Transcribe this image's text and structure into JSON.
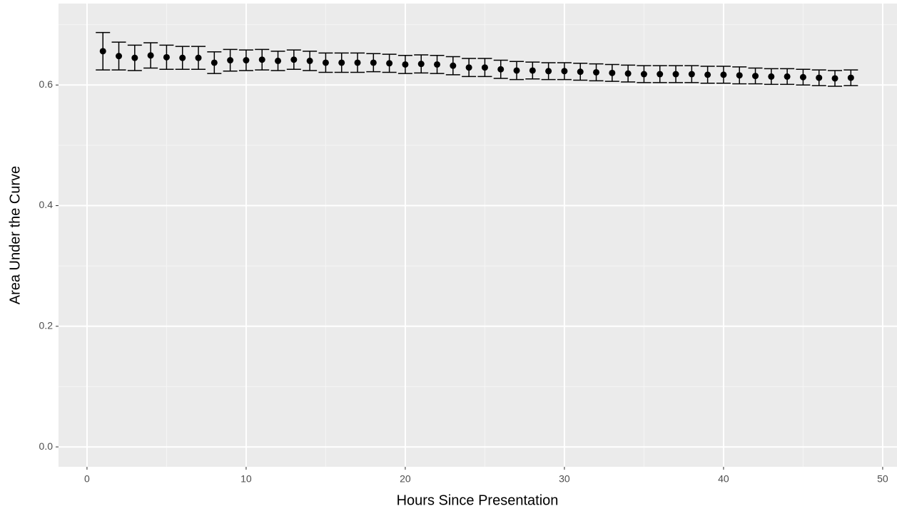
{
  "chart_data": {
    "type": "errorbar",
    "x_label": "Hours Since Presentation",
    "y_label": "Area Under the Curve",
    "grid": true,
    "xlim": [
      -1.79,
      50.9
    ],
    "ylim": [
      -0.033,
      0.735
    ],
    "xticks": [
      0,
      10,
      20,
      30,
      40,
      50
    ],
    "yticks": [
      {
        "value": 0,
        "label": "0.0"
      },
      {
        "value": 0.2,
        "label": "0.2"
      },
      {
        "value": 0.4,
        "label": "0.4"
      },
      {
        "value": 0.6,
        "label": "0.6"
      }
    ],
    "series": [
      {
        "color": "#000000",
        "x": [
          1,
          2,
          3,
          4,
          5,
          6,
          7,
          8,
          9,
          10,
          11,
          12,
          13,
          14,
          15,
          16,
          17,
          18,
          19,
          20,
          21,
          22,
          23,
          24,
          25,
          26,
          27,
          28,
          29,
          30,
          31,
          32,
          33,
          34,
          35,
          36,
          37,
          38,
          39,
          40,
          41,
          42,
          43,
          44,
          45,
          46,
          47,
          48
        ],
        "values": [
          0.656,
          0.648,
          0.645,
          0.649,
          0.646,
          0.645,
          0.645,
          0.637,
          0.641,
          0.641,
          0.642,
          0.64,
          0.642,
          0.64,
          0.637,
          0.637,
          0.637,
          0.637,
          0.636,
          0.634,
          0.635,
          0.634,
          0.632,
          0.629,
          0.629,
          0.626,
          0.624,
          0.624,
          0.623,
          0.623,
          0.622,
          0.621,
          0.62,
          0.619,
          0.618,
          0.618,
          0.618,
          0.618,
          0.617,
          0.617,
          0.616,
          0.615,
          0.614,
          0.614,
          0.613,
          0.612,
          0.611,
          0.612
        ],
        "errors": [
          0.031,
          0.023,
          0.021,
          0.021,
          0.02,
          0.019,
          0.019,
          0.018,
          0.018,
          0.017,
          0.017,
          0.016,
          0.016,
          0.016,
          0.016,
          0.016,
          0.016,
          0.015,
          0.015,
          0.015,
          0.015,
          0.015,
          0.015,
          0.015,
          0.015,
          0.015,
          0.015,
          0.014,
          0.014,
          0.014,
          0.014,
          0.014,
          0.014,
          0.014,
          0.014,
          0.014,
          0.014,
          0.014,
          0.014,
          0.014,
          0.014,
          0.013,
          0.013,
          0.013,
          0.013,
          0.013,
          0.013,
          0.013
        ]
      }
    ]
  }
}
